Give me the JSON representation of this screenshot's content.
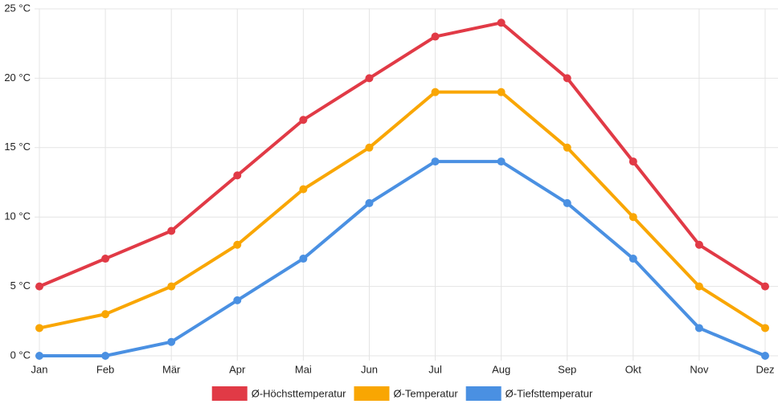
{
  "chart_data": {
    "type": "line",
    "categories": [
      "Jan",
      "Feb",
      "Mär",
      "Apr",
      "Mai",
      "Jun",
      "Jul",
      "Aug",
      "Sep",
      "Okt",
      "Nov",
      "Dez"
    ],
    "series": [
      {
        "name": "Ø-Höchsttemperatur",
        "color": "#e13a46",
        "values": [
          5,
          7,
          9,
          13,
          17,
          20,
          23,
          24,
          20,
          14,
          8,
          5
        ]
      },
      {
        "name": "Ø-Temperatur",
        "color": "#f9a602",
        "values": [
          2,
          3,
          5,
          8,
          12,
          15,
          19,
          19,
          15,
          10,
          5,
          2
        ]
      },
      {
        "name": "Ø-Tiefsttemperatur",
        "color": "#4a90e2",
        "values": [
          0,
          0,
          1,
          4,
          7,
          11,
          14,
          14,
          11,
          7,
          2,
          0
        ]
      }
    ],
    "ylim": [
      0,
      25
    ],
    "yticks": [
      {
        "value": 0,
        "label": "0 °C"
      },
      {
        "value": 5,
        "label": "5 °C"
      },
      {
        "value": 10,
        "label": "10 °C"
      },
      {
        "value": 15,
        "label": "15 °C"
      },
      {
        "value": 20,
        "label": "20 °C"
      },
      {
        "value": 25,
        "label": "25 °C"
      }
    ],
    "grid": true
  }
}
